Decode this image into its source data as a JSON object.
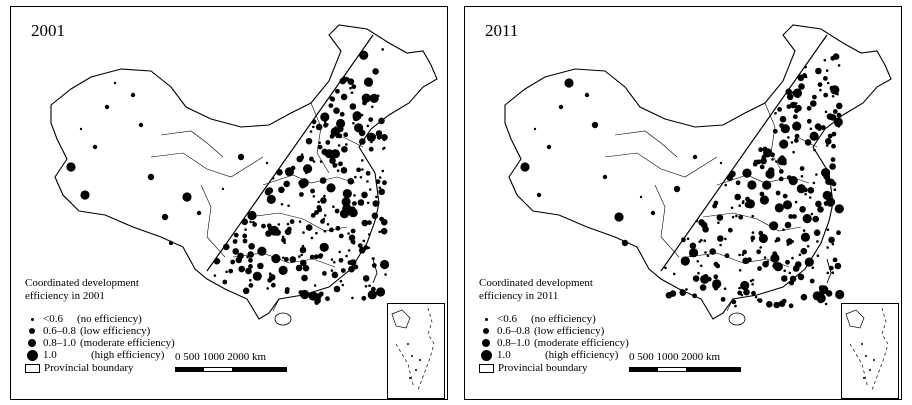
{
  "panels": [
    {
      "year": "2001",
      "legend_title_line1": "Coordinated development",
      "legend_title_line2": "efficiency in 2001"
    },
    {
      "year": "2011",
      "legend_title_line1": "Coordinated development",
      "legend_title_line2": "efficiency in 2011"
    }
  ],
  "legend": {
    "items": [
      {
        "label": "<0.6",
        "desc": "(no efficiency)"
      },
      {
        "label": "0.6–0.8",
        "desc": "(low efficiency)"
      },
      {
        "label": "0.8–1.0",
        "desc": "(moderate efficiency)"
      },
      {
        "label": "1.0",
        "desc": "(high efficiency)"
      }
    ],
    "boundary_label": "Provincial boundary"
  },
  "scale": {
    "labels": "0  500  1000    2000 km"
  },
  "colors": {
    "dot": "#000000",
    "line": "#000000",
    "background": "#ffffff"
  }
}
